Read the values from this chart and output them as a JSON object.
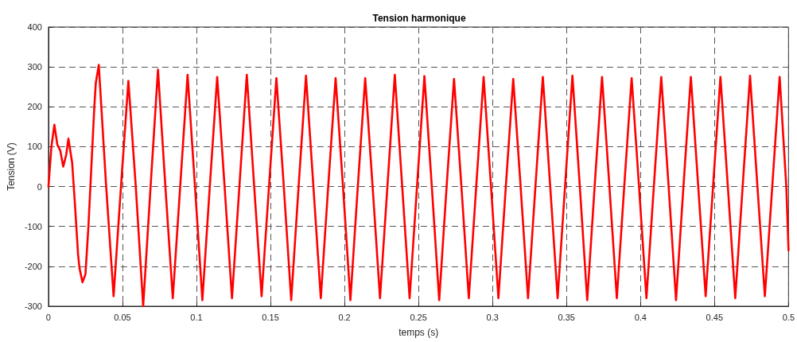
{
  "chart_data": {
    "type": "line",
    "title": "Tension harmonique",
    "xlabel": "temps (s)",
    "ylabel": "Tension (V)",
    "x": [
      0,
      0.002,
      0.004,
      0.006,
      0.008,
      0.01,
      0.012,
      0.0135,
      0.016,
      0.018,
      0.02,
      0.021,
      0.023,
      0.025,
      0.027,
      0.029,
      0.031,
      0.032,
      0.034,
      0.039,
      0.044,
      0.049,
      0.054,
      0.059,
      0.064,
      0.069,
      0.074,
      0.079,
      0.084,
      0.089,
      0.094,
      0.099,
      0.104,
      0.109,
      0.114,
      0.119,
      0.124,
      0.129,
      0.134,
      0.139,
      0.144,
      0.149,
      0.154,
      0.159,
      0.164,
      0.169,
      0.174,
      0.179,
      0.184,
      0.189,
      0.194,
      0.199,
      0.204,
      0.209,
      0.214,
      0.219,
      0.224,
      0.229,
      0.234,
      0.239,
      0.244,
      0.249,
      0.254,
      0.259,
      0.264,
      0.269,
      0.274,
      0.279,
      0.284,
      0.289,
      0.294,
      0.299,
      0.304,
      0.309,
      0.314,
      0.319,
      0.324,
      0.329,
      0.334,
      0.339,
      0.344,
      0.349,
      0.354,
      0.359,
      0.364,
      0.369,
      0.374,
      0.379,
      0.384,
      0.389,
      0.394,
      0.399,
      0.404,
      0.409,
      0.414,
      0.419,
      0.424,
      0.429,
      0.434,
      0.439,
      0.444,
      0.449,
      0.454,
      0.459,
      0.464,
      0.469,
      0.474,
      0.479,
      0.484,
      0.489,
      0.494,
      0.4985,
      0.5
    ],
    "series": [
      {
        "color": "#ff0000",
        "values": [
          0,
          100,
          155,
          105,
          90,
          50,
          80,
          120,
          60,
          -50,
          -170,
          -205,
          -240,
          -220,
          -100,
          50,
          200,
          260,
          305,
          0,
          -275,
          0,
          265,
          0,
          -300,
          0,
          293,
          0,
          -280,
          0,
          280,
          0,
          -285,
          0,
          275,
          0,
          -280,
          0,
          280,
          0,
          -275,
          0,
          272,
          0,
          -285,
          0,
          278,
          0,
          -280,
          0,
          272,
          0,
          -285,
          0,
          272,
          0,
          -280,
          0,
          280,
          0,
          -280,
          0,
          277,
          0,
          -285,
          0,
          270,
          0,
          -280,
          0,
          275,
          0,
          -280,
          0,
          270,
          0,
          -280,
          0,
          275,
          0,
          -280,
          0,
          278,
          0,
          -285,
          0,
          275,
          0,
          -280,
          0,
          272,
          0,
          -280,
          0,
          275,
          0,
          -285,
          0,
          275,
          0,
          -275,
          0,
          275,
          0,
          -280,
          0,
          278,
          0,
          -275,
          0,
          275,
          0,
          -160
        ]
      }
    ],
    "xlim": [
      0,
      0.5
    ],
    "xticks": [
      0,
      0.05,
      0.1,
      0.15,
      0.2,
      0.25,
      0.3,
      0.35,
      0.4,
      0.45,
      0.5
    ],
    "ylim": [
      -300,
      400
    ],
    "yticks": [
      -300,
      -200,
      -100,
      0,
      100,
      200,
      300,
      400
    ],
    "grid": true,
    "line_style": "solid",
    "marker": "none"
  }
}
